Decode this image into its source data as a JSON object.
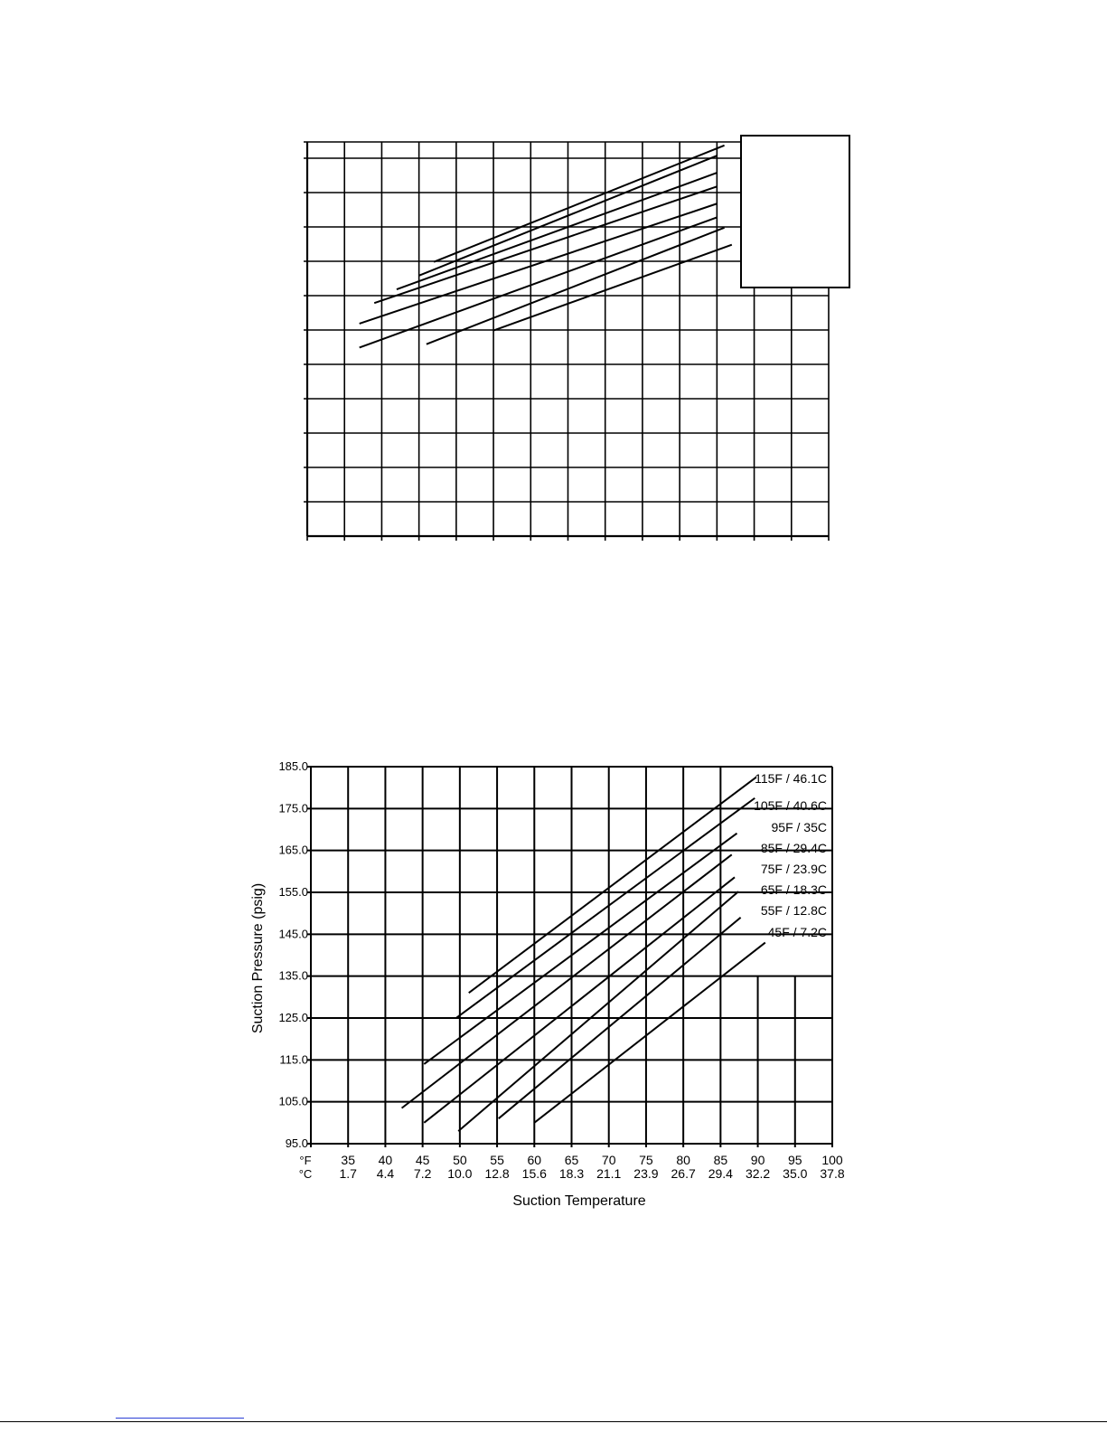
{
  "chart_data": [
    {
      "type": "line",
      "description_visible": "Upper chart: grid with sloped lines and an empty legend box; no labels printed",
      "xlim": [
        30,
        100
      ],
      "ylim": [
        85,
        200
      ],
      "series": [
        {
          "x": [
            47,
            86
          ],
          "y": [
            165,
            199
          ]
        },
        {
          "x": [
            45,
            85
          ],
          "y": [
            161,
            196
          ]
        },
        {
          "x": [
            42,
            85
          ],
          "y": [
            157,
            191
          ]
        },
        {
          "x": [
            39,
            85
          ],
          "y": [
            153,
            187
          ]
        },
        {
          "x": [
            37,
            85
          ],
          "y": [
            147,
            182
          ]
        },
        {
          "x": [
            37,
            85
          ],
          "y": [
            140,
            178
          ]
        },
        {
          "x": [
            46,
            86
          ],
          "y": [
            141,
            175
          ]
        },
        {
          "x": [
            55,
            87
          ],
          "y": [
            145,
            170
          ]
        }
      ]
    },
    {
      "type": "line",
      "ylabel": "Suction Pressure (psig)",
      "xlabel": "Suction Temperature",
      "grid": true,
      "legend": "right, inline labels",
      "xlim": [
        30,
        100
      ],
      "ylim": [
        95,
        185
      ],
      "y_ticks": [
        "185.0",
        "175.0",
        "165.0",
        "155.0",
        "145.0",
        "135.0",
        "125.0",
        "115.0",
        "105.0",
        "95.0"
      ],
      "x_unit_f": "°F",
      "x_unit_c": "°C",
      "x_ticks_f": [
        "35",
        "40",
        "45",
        "50",
        "55",
        "60",
        "65",
        "70",
        "75",
        "80",
        "85",
        "90",
        "95",
        "100"
      ],
      "x_ticks_c": [
        "1.7",
        "4.4",
        "7.2",
        "10.0",
        "12.8",
        "15.6",
        "18.3",
        "21.1",
        "23.9",
        "26.7",
        "29.4",
        "32.2",
        "35.0",
        "37.8"
      ],
      "series": [
        {
          "name": "115F / 46.1C",
          "x": [
            51.2,
            89.8
          ],
          "y": [
            131,
            182.5
          ]
        },
        {
          "name": "105F / 40.6C",
          "x": [
            49.5,
            89.6
          ],
          "y": [
            125,
            177.5
          ]
        },
        {
          "name": "95F / 35C",
          "x": [
            45.2,
            87.2
          ],
          "y": [
            114,
            169.1
          ]
        },
        {
          "name": "85F / 29.4C",
          "x": [
            42.2,
            86.5
          ],
          "y": [
            103.5,
            164
          ]
        },
        {
          "name": "75F / 23.9C",
          "x": [
            45.2,
            86.9
          ],
          "y": [
            100,
            158.6
          ]
        },
        {
          "name": "65F / 18.3C",
          "x": [
            49.8,
            87.4
          ],
          "y": [
            98,
            155.2
          ]
        },
        {
          "name": "55F / 12.8C",
          "x": [
            55.2,
            87.7
          ],
          "y": [
            101,
            149
          ]
        },
        {
          "name": "45F / 7.2C",
          "x": [
            60.0,
            91.0
          ],
          "y": [
            100,
            143
          ]
        }
      ]
    }
  ]
}
